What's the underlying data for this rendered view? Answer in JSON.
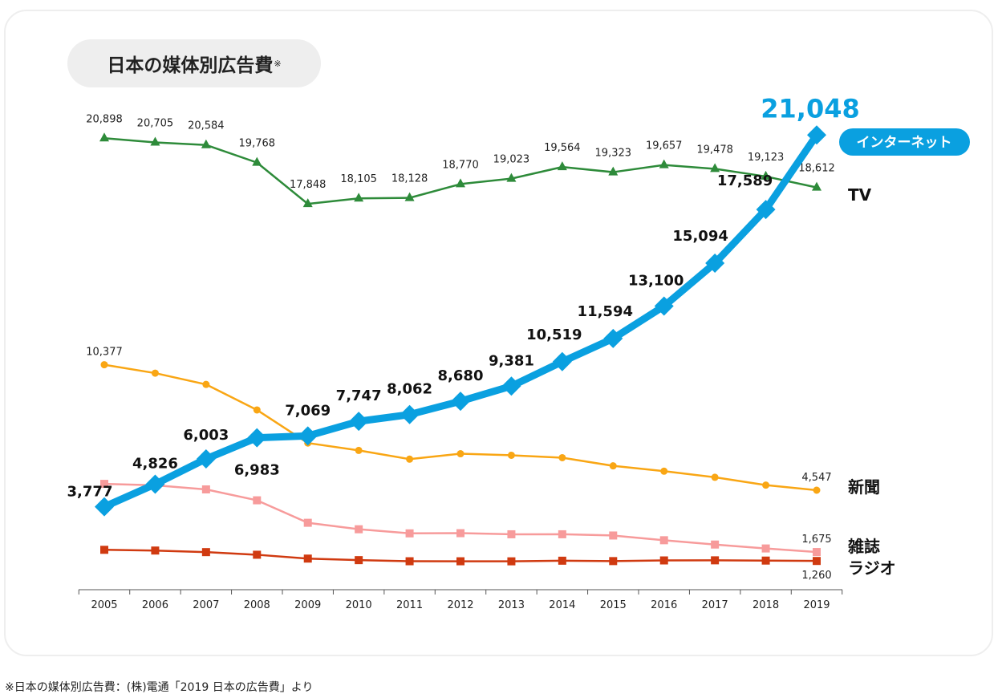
{
  "chart_title": "日本の媒体別広告費",
  "chart_title_mark": "※",
  "footnote": "※日本の媒体別広告費：(株)電通「2019 日本の広告費」より",
  "chart_data": {
    "type": "line",
    "title": "日本の媒体別広告費※",
    "x": [
      "2005",
      "2006",
      "2007",
      "2008",
      "2009",
      "2010",
      "2011",
      "2012",
      "2013",
      "2014",
      "2015",
      "2016",
      "2017",
      "2018",
      "2019"
    ],
    "ylim": [
      0,
      22000
    ],
    "grid": false,
    "series": [
      {
        "name": "TV",
        "color": "#2e8b3a",
        "marker": "triangle",
        "values": [
          20898,
          20705,
          20584,
          19768,
          17848,
          18105,
          18128,
          18770,
          19023,
          19564,
          19323,
          19657,
          19478,
          19123,
          18612
        ],
        "labels": [
          "20,898",
          "20,705",
          "20,584",
          "19,768",
          "17,848",
          "18,105",
          "18,128",
          "18,770",
          "19,023",
          "19,564",
          "19,323",
          "19,657",
          "19,478",
          "19,123",
          "18,612"
        ]
      },
      {
        "name": "インターネット",
        "color": "#0aa0e0",
        "marker": "diamond",
        "values": [
          3777,
          4826,
          6003,
          6983,
          7069,
          7747,
          8062,
          8680,
          9381,
          10519,
          11594,
          13100,
          15094,
          17589,
          21048
        ],
        "labels": [
          "3,777",
          "4,826",
          "6,003",
          "6,983",
          "7,069",
          "7,747",
          "8,062",
          "8,680",
          "9,381",
          "10,519",
          "11,594",
          "13,100",
          "15,094",
          "17,589",
          "21,048"
        ]
      },
      {
        "name": "新聞",
        "color": "#f9a614",
        "marker": "circle",
        "values": [
          10377,
          9986,
          9462,
          8276,
          6739,
          6396,
          5990,
          6242,
          6170,
          6057,
          5679,
          5431,
          5147,
          4784,
          4547
        ],
        "labels": [
          "10,377",
          "",
          "",
          "",
          "",
          "",
          "",
          "",
          "",
          "",
          "",
          "",
          "",
          "",
          "4,547"
        ]
      },
      {
        "name": "雑誌",
        "color": "#f79b9b",
        "marker": "square",
        "values": [
          4842,
          4777,
          4585,
          4078,
          3034,
          2733,
          2542,
          2551,
          2499,
          2500,
          2443,
          2223,
          2023,
          1841,
          1675
        ],
        "labels": [
          "",
          "",
          "",
          "",
          "",
          "",
          "",
          "",
          "",
          "",
          "",
          "",
          "",
          "",
          "1,675"
        ]
      },
      {
        "name": "ラジオ",
        "color": "#d03a10",
        "marker": "square",
        "values": [
          1778,
          1744,
          1671,
          1549,
          1370,
          1299,
          1247,
          1246,
          1243,
          1272,
          1254,
          1285,
          1290,
          1278,
          1260
        ],
        "labels": [
          "",
          "",
          "",
          "",
          "",
          "",
          "",
          "",
          "",
          "",
          "",
          "",
          "",
          "",
          "1,260"
        ]
      }
    ]
  }
}
